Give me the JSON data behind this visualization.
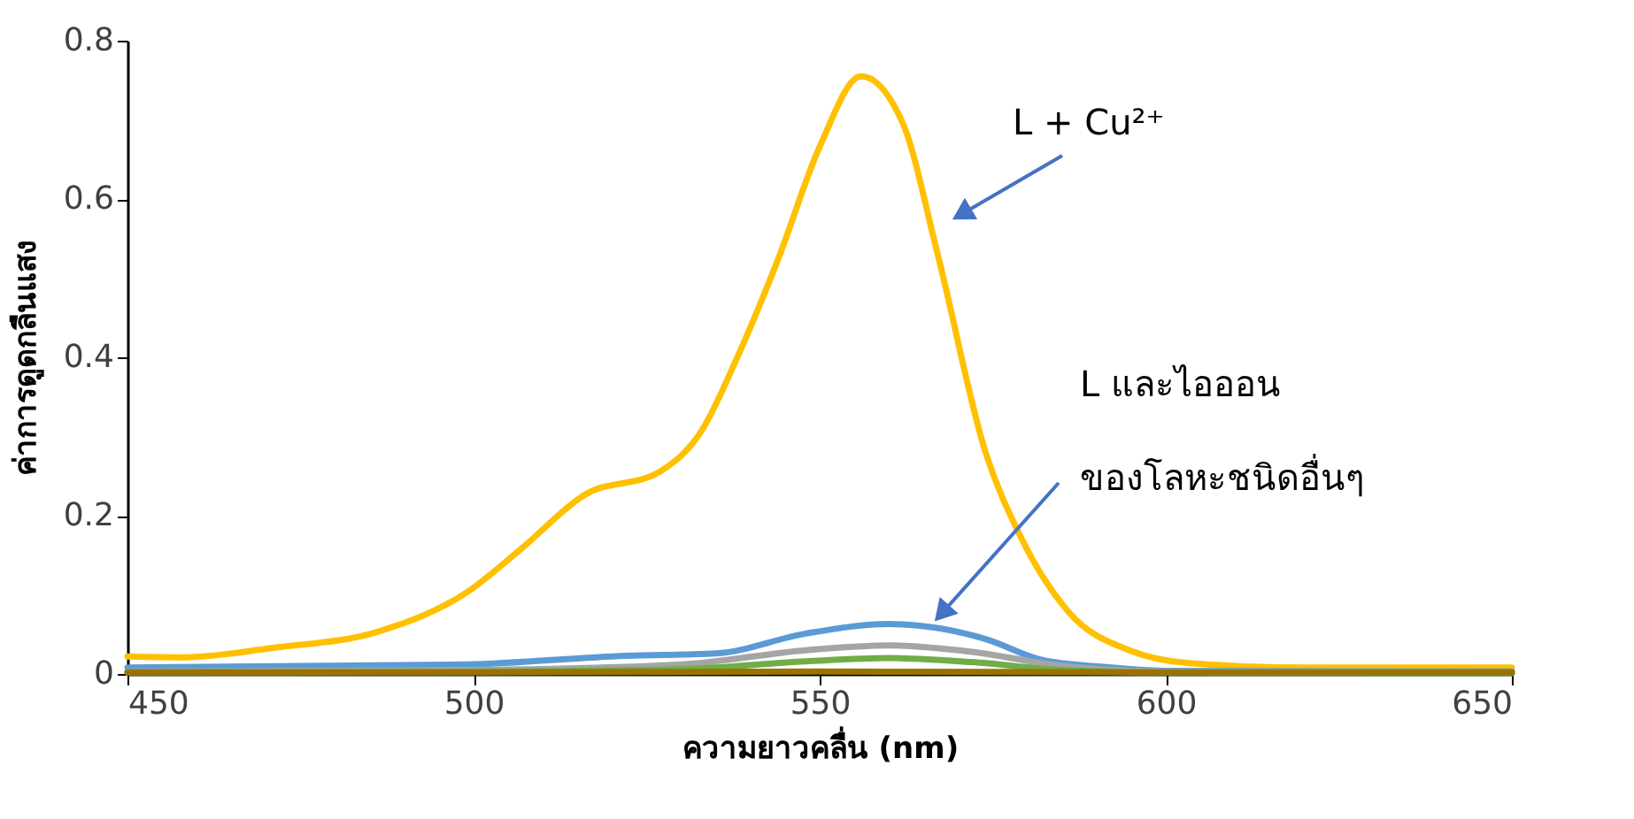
{
  "chart_data": {
    "type": "line",
    "xlabel": "ความยาวคลื่น (nm)",
    "ylabel": "ค่าการดูดกลืนแสง",
    "xlim": [
      450,
      650
    ],
    "xticks": [
      450,
      500,
      550,
      600,
      650
    ],
    "ylim": [
      0,
      0.8
    ],
    "yticks": [
      0,
      0.2,
      0.4,
      0.6,
      0.8
    ],
    "grid": false,
    "marker": "none",
    "line_style": "solid",
    "series": [
      {
        "color": "#ffc000",
        "x": [
          450,
          458,
          471,
          486,
          499,
          507,
          516,
          527,
          533,
          538,
          544,
          550,
          556,
          562,
          567,
          574,
          579,
          586,
          595,
          603,
          620,
          650
        ],
        "values": [
          0.022,
          0.021,
          0.033,
          0.053,
          0.103,
          0.159,
          0.226,
          0.256,
          0.308,
          0.398,
          0.524,
          0.666,
          0.755,
          0.696,
          0.532,
          0.279,
          0.174,
          0.078,
          0.029,
          0.014,
          0.008,
          0.008
        ]
      },
      {
        "color": "#5b9bd5",
        "x": [
          450,
          499,
          522,
          535,
          548,
          560,
          574,
          582,
          591,
          600,
          650
        ],
        "values": [
          0.008,
          0.012,
          0.023,
          0.026,
          0.051,
          0.063,
          0.044,
          0.018,
          0.009,
          0.004,
          0.003
        ]
      },
      {
        "color": "#a5a5a5",
        "x": [
          450,
          500,
          530,
          548,
          560,
          572,
          585,
          600,
          650
        ],
        "values": [
          0.003,
          0.005,
          0.012,
          0.03,
          0.036,
          0.028,
          0.01,
          0.003,
          0.002
        ]
      },
      {
        "color": "#70ad47",
        "x": [
          450,
          500,
          530,
          548,
          560,
          572,
          585,
          600,
          650
        ],
        "values": [
          0.002,
          0.003,
          0.006,
          0.016,
          0.02,
          0.015,
          0.005,
          0.002,
          0.001
        ]
      },
      {
        "color": "#997300",
        "x": [
          450,
          500,
          550,
          600,
          650
        ],
        "values": [
          0.002,
          0.002,
          0.003,
          0.002,
          0.002
        ]
      }
    ],
    "annotations": [
      "L + Cu²⁺",
      "L และไอออน",
      {
        "text": "ของโลหะชนิดอื่นๆ",
        "x": 568,
        "y": 0.08
      }
    ]
  }
}
